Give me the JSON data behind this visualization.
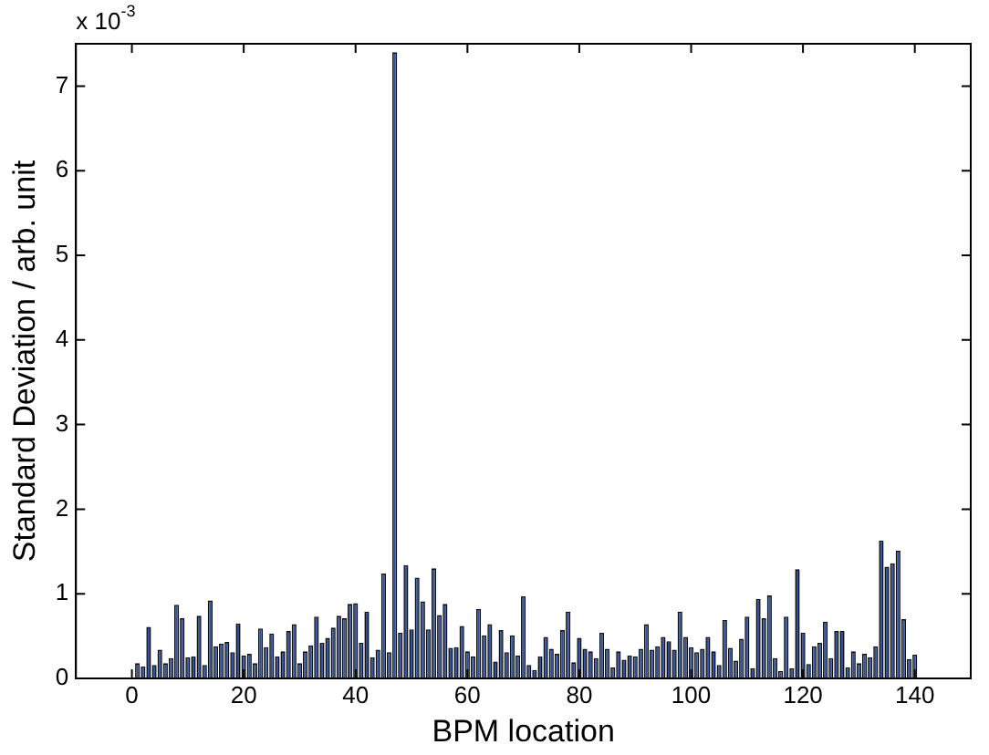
{
  "chart_data": {
    "type": "bar",
    "xlabel": "BPM location",
    "ylabel": "Standard Deviation / arb. unit",
    "annotations": [
      "x 10$^{-3}$"
    ],
    "x": [
      1,
      2,
      3,
      4,
      5,
      6,
      7,
      8,
      9,
      10,
      11,
      12,
      13,
      14,
      15,
      16,
      17,
      18,
      19,
      20,
      21,
      22,
      23,
      24,
      25,
      26,
      27,
      28,
      29,
      30,
      31,
      32,
      33,
      34,
      35,
      36,
      37,
      38,
      39,
      40,
      41,
      42,
      43,
      44,
      45,
      46,
      47,
      48,
      49,
      50,
      51,
      52,
      53,
      54,
      55,
      56,
      57,
      58,
      59,
      60,
      61,
      62,
      63,
      64,
      65,
      66,
      67,
      68,
      69,
      70,
      71,
      72,
      73,
      74,
      75,
      76,
      77,
      78,
      79,
      80,
      81,
      82,
      83,
      84,
      85,
      86,
      87,
      88,
      89,
      90,
      91,
      92,
      93,
      94,
      95,
      96,
      97,
      98,
      99,
      100,
      101,
      102,
      103,
      104,
      105,
      106,
      107,
      108,
      109,
      110,
      111,
      112,
      113,
      114,
      115,
      116,
      117,
      118,
      119,
      120,
      121,
      122,
      123,
      124,
      125,
      126,
      127,
      128,
      129,
      130,
      131,
      132,
      133,
      134,
      135,
      136,
      137,
      138,
      139,
      140
    ],
    "values": [
      0.18,
      0.14,
      0.61,
      0.16,
      0.34,
      0.18,
      0.24,
      0.87,
      0.71,
      0.25,
      0.26,
      0.74,
      0.16,
      0.92,
      0.38,
      0.41,
      0.43,
      0.31,
      0.65,
      0.27,
      0.29,
      0.18,
      0.59,
      0.37,
      0.53,
      0.26,
      0.32,
      0.56,
      0.64,
      0.18,
      0.32,
      0.39,
      0.73,
      0.42,
      0.48,
      0.6,
      0.74,
      0.71,
      0.88,
      0.89,
      0.42,
      0.79,
      0.25,
      0.34,
      1.24,
      0.31,
      7.4,
      0.54,
      1.34,
      0.58,
      1.19,
      0.91,
      0.58,
      1.3,
      0.75,
      0.88,
      0.36,
      0.37,
      0.62,
      0.32,
      0.26,
      0.82,
      0.51,
      0.64,
      0.2,
      0.57,
      0.31,
      0.51,
      0.27,
      0.97,
      0.16,
      0.1,
      0.26,
      0.49,
      0.35,
      0.29,
      0.57,
      0.79,
      0.19,
      0.48,
      0.35,
      0.32,
      0.24,
      0.54,
      0.35,
      0.13,
      0.32,
      0.22,
      0.27,
      0.26,
      0.35,
      0.64,
      0.34,
      0.38,
      0.49,
      0.44,
      0.34,
      0.79,
      0.49,
      0.37,
      0.31,
      0.35,
      0.49,
      0.32,
      0.16,
      0.69,
      0.36,
      0.21,
      0.47,
      0.73,
      0.12,
      0.94,
      0.71,
      0.98,
      0.24,
      0.09,
      0.73,
      0.12,
      1.29,
      0.54,
      0.17,
      0.38,
      0.42,
      0.67,
      0.24,
      0.56,
      0.56,
      0.13,
      0.32,
      0.18,
      0.29,
      0.25,
      0.38,
      1.63,
      1.32,
      1.36,
      1.51,
      0.7,
      0.23,
      0.28
    ],
    "color": "#2f4f9f",
    "xlim": [
      0,
      140
    ],
    "xticks": [
      0,
      20,
      40,
      60,
      80,
      100,
      120,
      140
    ],
    "ylim": [
      0,
      7.5
    ],
    "yticks": [
      0,
      1,
      2,
      3,
      4,
      5,
      6,
      7
    ],
    "grid": false,
    "legend": false
  }
}
